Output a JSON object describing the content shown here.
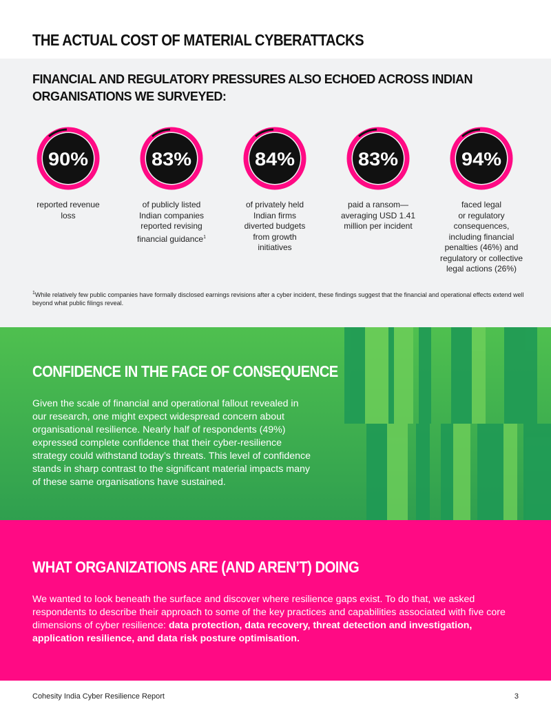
{
  "header": {
    "title": "THE ACTUAL COST OF MATERIAL CYBERATTACKS"
  },
  "stats_section": {
    "subtitle": "FINANCIAL AND REGULATORY PRESSURES ALSO ECHOED ACROSS INDIAN ORGANISATIONS WE SURVEYED:",
    "stats": [
      {
        "value": "90%",
        "lines": [
          "reported revenue",
          "loss"
        ]
      },
      {
        "value": "83%",
        "lines": [
          "of publicly listed",
          "Indian companies",
          "reported revising",
          "financial guidance"
        ],
        "footnote_mark": "1"
      },
      {
        "value": "84%",
        "lines": [
          "of privately held",
          "Indian firms",
          "diverted budgets",
          "from growth",
          "initiatives"
        ]
      },
      {
        "value": "83%",
        "lines": [
          "paid a ransom—",
          "averaging USD 1.41",
          "million per incident"
        ]
      },
      {
        "value": "94%",
        "lines": [
          "faced legal",
          "or regulatory",
          "consequences,",
          "including financial",
          "penalties (46%) and",
          "regulatory or collective",
          "legal actions (26%)"
        ]
      }
    ],
    "footnote": {
      "mark": "1",
      "text": "While relatively few public companies have formally disclosed earnings revisions after a cyber incident, these findings suggest that the financial and operational effects extend well beyond what public filings reveal."
    }
  },
  "confidence_section": {
    "heading": "CONFIDENCE IN THE FACE OF CONSEQUENCE",
    "body": "Given the scale of financial and operational fallout revealed in our research, one might expect widespread concern about organisational resilience. Nearly half of respondents (49%) expressed complete confidence that their cyber-resilience strategy could withstand today’s threats. This level of confidence stands in sharp contrast to the significant material impacts many of these same organisations have sustained."
  },
  "doing_section": {
    "heading": "WHAT ORGANIZATIONS ARE (AND AREN’T) DOING",
    "body": "We wanted to look beneath the surface and discover where resilience gaps exist. To do that, we asked respondents to describe their approach to some of the key practices and capabilities associated with five core dimensions of cyber resilience: ",
    "body_bold": "data protection, data recovery, threat detection and investigation, application resilience, and data risk posture optimisation."
  },
  "footer": {
    "report": "Cohesity India Cyber Resilience Report",
    "page": "3"
  }
}
